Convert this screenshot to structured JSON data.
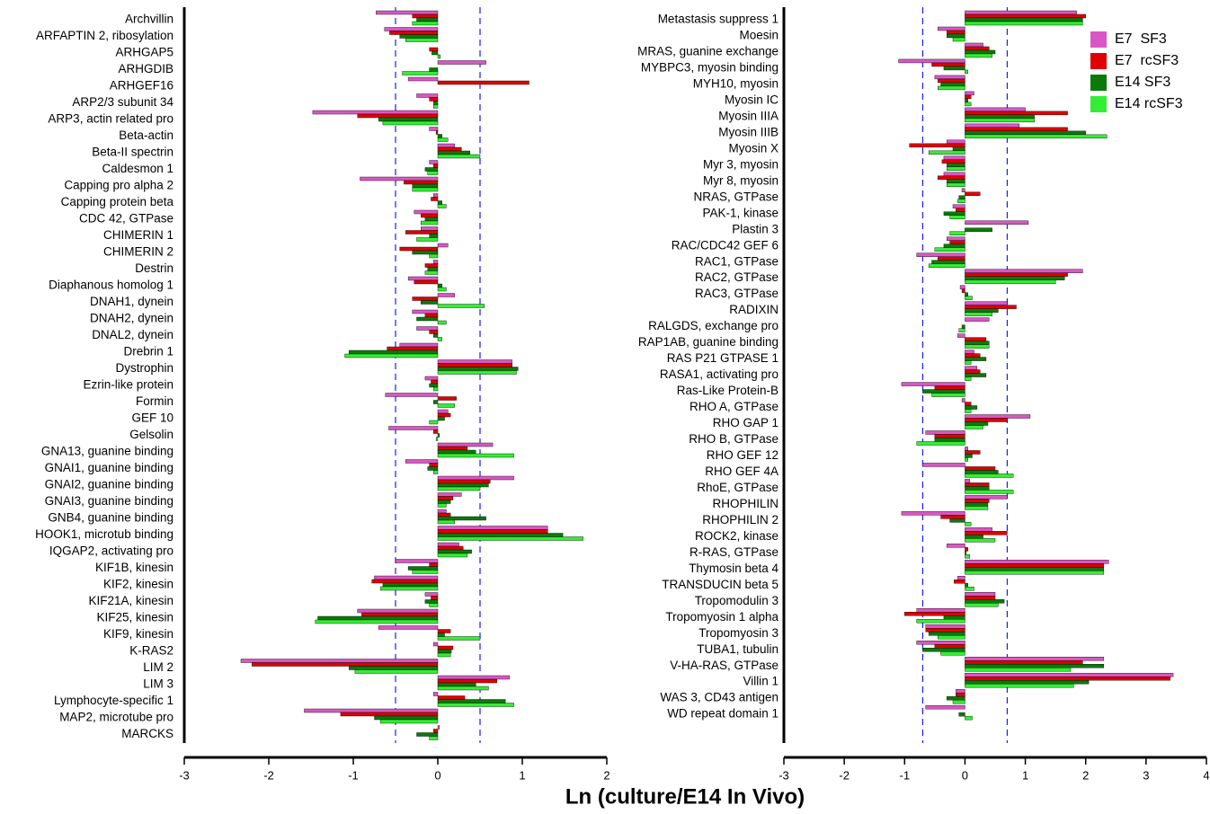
{
  "chart_data": [
    {
      "type": "bar",
      "orientation": "horizontal",
      "xlabel": "Ln (culture/E14 In Vivo)",
      "categories": [
        "Archvillin",
        "ARFAPTIN 2, ribosylation",
        "ARHGAP5",
        "ARHGDIB",
        "ARHGEF16",
        "ARP2/3 subunit 34",
        "ARP3, actin related pro",
        "Beta-actin",
        "Beta-II spectrin",
        "Caldesmon 1",
        "Capping pro alpha 2",
        "Capping protein beta",
        "CDC 42, GTPase",
        "CHIMERIN 1",
        "CHIMERIN 2",
        "Destrin",
        "Diaphanous homolog 1",
        "DNAH1, dynein",
        "DNAH2, dynein",
        "DNAL2, dynein",
        "Drebrin 1",
        "Dystrophin",
        "Ezrin-like protein",
        "Formin",
        "GEF 10",
        "Gelsolin",
        "GNA13, guanine binding",
        "GNAI1, guanine binding",
        "GNAI2, guanine binding",
        "GNAI3, guanine binding",
        "GNB4, guanine binding",
        "HOOK1, microtub binding",
        "IQGAP2, activating pro",
        "KIF1B, kinesin",
        "KIF2, kinesin",
        "KIF21A, kinesin",
        "KIF25, kinesin",
        "KIF9, kinesin",
        "K-RAS2",
        "LIM 2",
        "LIM 3",
        "Lymphocyte-specific 1",
        "MAP2, microtube pro",
        "MARCKS"
      ],
      "series": [
        {
          "color": "#d957c4",
          "values": [
            -0.73,
            -0.63,
            0,
            0.57,
            -0.35,
            -0.25,
            -1.48,
            -0.1,
            0.2,
            -0.1,
            -0.92,
            -0.05,
            -0.28,
            -0.2,
            0.12,
            -0.05,
            -0.35,
            0.2,
            -0.3,
            -0.25,
            -0.45,
            0.88,
            -0.15,
            -0.62,
            0.12,
            -0.58,
            0.65,
            -0.38,
            0.9,
            0.28,
            0.1,
            1.3,
            0.25,
            -0.5,
            -0.75,
            -0.15,
            -0.95,
            -0.7,
            -0.05,
            -2.33,
            0.85,
            -0.05,
            -1.58,
            0.02
          ]
        },
        {
          "color": "#e00000",
          "values": [
            -0.3,
            -0.57,
            -0.1,
            0,
            1.08,
            -0.1,
            -0.95,
            -0.02,
            0.28,
            -0.05,
            -0.4,
            -0.08,
            -0.2,
            -0.38,
            -0.45,
            -0.15,
            -0.28,
            -0.3,
            -0.15,
            -0.1,
            -0.6,
            0.88,
            -0.08,
            0.22,
            0.15,
            -0.05,
            0.35,
            -0.1,
            0.62,
            0.18,
            0.15,
            1.3,
            0.3,
            -0.1,
            -0.78,
            -0.08,
            -0.9,
            0.15,
            0.18,
            -2.2,
            0.7,
            0.32,
            -1.15,
            -0.05
          ]
        },
        {
          "color": "#0a7a0a",
          "values": [
            -0.25,
            -0.45,
            -0.07,
            -0.1,
            0,
            -0.05,
            -0.7,
            0.05,
            0.38,
            -0.15,
            -0.3,
            0.05,
            -0.15,
            -0.1,
            -0.3,
            -0.12,
            0.05,
            -0.2,
            -0.25,
            -0.05,
            -1.05,
            0.95,
            -0.1,
            -0.05,
            0.08,
            0.02,
            0.45,
            -0.12,
            0.6,
            0.15,
            0.57,
            1.48,
            0.4,
            -0.35,
            -0.65,
            -0.15,
            -1.42,
            0.08,
            0.16,
            -1.05,
            0.45,
            0.8,
            -0.75,
            -0.25
          ]
        },
        {
          "color": "#33ee33",
          "values": [
            -0.3,
            -0.38,
            0.03,
            -0.42,
            0,
            -0.05,
            -0.65,
            0.12,
            0.5,
            -0.12,
            -0.3,
            0.1,
            -0.2,
            -0.25,
            -0.1,
            -0.15,
            0.1,
            0.55,
            0.1,
            0.05,
            -1.1,
            0.93,
            -0.05,
            0.2,
            -0.1,
            -0.02,
            0.9,
            -0.05,
            0.5,
            0.1,
            0.2,
            1.72,
            0.35,
            -0.3,
            -0.68,
            -0.1,
            -1.45,
            0.5,
            0.15,
            -0.98,
            0.6,
            0.9,
            -0.68,
            -0.1
          ]
        }
      ],
      "xlim": [
        -3,
        2
      ],
      "xticks": [
        -3,
        -2,
        -1,
        0,
        1,
        2
      ],
      "reference_lines": [
        -0.5,
        0.5
      ]
    },
    {
      "type": "bar",
      "orientation": "horizontal",
      "categories": [
        "Metastasis suppress 1",
        "Moesin",
        "MRAS, guanine exchange",
        "MYBPC3, myosin binding",
        "MYH10, myosin",
        "Myosin IC",
        "Myosin IIIA",
        "Myosin IIIB",
        "Myosin X",
        "Myr 3, myosin",
        "Myr 8, myosin",
        "NRAS, GTPase",
        "PAK-1, kinase",
        "Plastin 3",
        "RAC/CDC42 GEF 6",
        "RAC1, GTPase",
        "RAC2, GTPase",
        "RAC3, GTPase",
        "RADIXIN",
        "RALGDS, exchange pro",
        "RAP1AB, guanine binding",
        "RAS P21 GTPASE  1",
        "RASA1, activating pro",
        "Ras-Like Protein-B",
        "RHO  A, GTPase",
        "RHO  GAP  1",
        "RHO B, GTPase",
        "RHO GEF 12",
        "RHO GEF 4A",
        "RhoE, GTPase",
        "RHOPHILIN",
        "RHOPHILIN 2",
        "ROCK2, kinase",
        "R-RAS, GTPase",
        "Thymosin beta 4",
        "TRANSDUCIN beta  5",
        "Tropomodulin 3",
        "Tropomyosin 1 alpha",
        "Tropomyosin 3",
        "TUBA1, tubulin",
        "V-HA-RAS, GTPase",
        "Villin 1",
        "WAS 3, CD43 antigen",
        "WD repeat domain 1"
      ],
      "series": [
        {
          "name": "E7  SF3",
          "color": "#d957c4",
          "values": [
            1.85,
            -0.45,
            0.3,
            -1.1,
            -0.5,
            0.15,
            1.0,
            0.9,
            -0.3,
            -0.35,
            -0.35,
            -0.05,
            -0.2,
            1.05,
            -0.3,
            -0.8,
            1.95,
            -0.08,
            0.7,
            0.4,
            -0.12,
            0.15,
            0.2,
            -1.05,
            -0.05,
            1.08,
            -0.65,
            0.05,
            -0.7,
            0.08,
            0.7,
            -1.05,
            0.45,
            -0.3,
            2.38,
            -0.12,
            0.5,
            -0.8,
            -0.65,
            -0.8,
            2.3,
            3.45,
            -0.15,
            -0.65
          ]
        },
        {
          "name": "E7  rcSF3",
          "color": "#e00000",
          "values": [
            2.0,
            -0.3,
            0.4,
            -0.55,
            -0.45,
            0.1,
            1.7,
            1.7,
            -0.92,
            -0.38,
            -0.45,
            0.25,
            -0.15,
            0,
            -0.25,
            -0.45,
            1.7,
            -0.05,
            0.85,
            0,
            0.35,
            0.25,
            0.25,
            -0.5,
            0.1,
            0.7,
            -0.5,
            0.25,
            0.5,
            0.4,
            0.4,
            -0.4,
            0.7,
            0.05,
            2.3,
            -0.18,
            0.5,
            -1.0,
            -0.65,
            -0.5,
            1.95,
            3.4,
            -0.15,
            0
          ]
        },
        {
          "name": "E14 SF3",
          "color": "#0a7a0a",
          "values": [
            1.95,
            -0.3,
            0.5,
            -0.35,
            -0.4,
            0.05,
            1.15,
            2.0,
            -0.2,
            -0.3,
            -0.3,
            -0.1,
            -0.35,
            0.45,
            -0.35,
            -0.55,
            1.65,
            0.05,
            0.55,
            -0.05,
            0.4,
            0.35,
            0.35,
            -0.7,
            0.2,
            0.38,
            -0.5,
            0.12,
            0.55,
            0.4,
            0.38,
            -0.25,
            0.3,
            0.02,
            2.3,
            0.05,
            0.65,
            -0.35,
            -0.6,
            -0.7,
            2.3,
            2.05,
            -0.3,
            -0.1
          ]
        },
        {
          "name": "E14 rcSF3",
          "color": "#33ee33",
          "values": [
            1.95,
            -0.2,
            0.45,
            0.05,
            -0.45,
            0.1,
            1.15,
            2.35,
            -0.6,
            -0.3,
            -0.3,
            -0.12,
            -0.25,
            -0.25,
            -0.5,
            -0.6,
            1.5,
            0.12,
            0.45,
            -0.1,
            0.4,
            0.1,
            0.1,
            -0.55,
            0.1,
            0.3,
            -0.8,
            0.05,
            0.8,
            0.8,
            0.38,
            0.1,
            0.5,
            0.08,
            2.3,
            0.15,
            0.55,
            -0.8,
            -0.45,
            -0.4,
            1.75,
            1.8,
            -0.2,
            0.12
          ]
        }
      ],
      "xlim": [
        -3,
        4
      ],
      "xticks": [
        -3,
        -2,
        -1,
        0,
        1,
        2,
        3,
        4
      ],
      "reference_lines": [
        -0.7,
        0.7
      ],
      "legend": "upper right"
    }
  ]
}
